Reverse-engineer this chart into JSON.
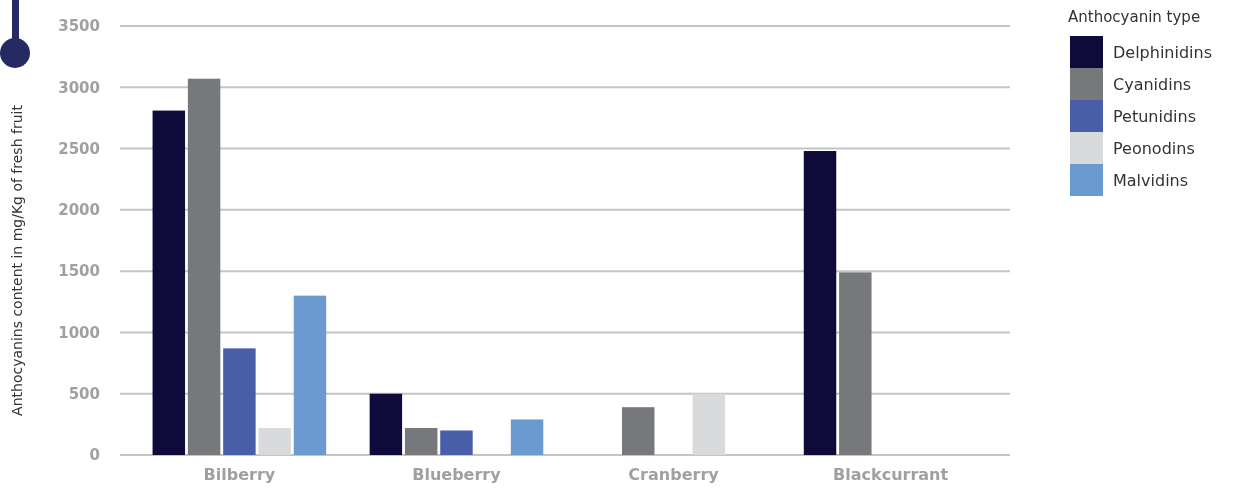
{
  "chart_data": {
    "type": "bar",
    "ylabel": "Anthocyanins content in mg/Kg of fresh fruit",
    "legend_title": "Anthocyanin type",
    "categories": [
      "Bilberry",
      "Blueberry",
      "Cranberry",
      "Blackcurrant"
    ],
    "series": [
      {
        "name": "Delphinidins",
        "color": "#0e0b3b",
        "values": [
          2810,
          500,
          null,
          2480
        ]
      },
      {
        "name": "Cyanidins",
        "color": "#77787c",
        "values": [
          3070,
          220,
          390,
          1490
        ]
      },
      {
        "name": "Petunidins",
        "color": "#485ea8",
        "values": [
          870,
          200,
          null,
          null
        ]
      },
      {
        "name": "Peonodins",
        "color": "#d9dadc",
        "values": [
          220,
          null,
          500,
          null
        ]
      },
      {
        "name": "Malvidins",
        "color": "#6b9ad0",
        "values": [
          1300,
          290,
          null,
          null
        ]
      }
    ],
    "ylim": [
      0,
      3500
    ],
    "yticks": [
      0,
      500,
      1000,
      1500,
      2000,
      2500,
      3000,
      3500
    ],
    "grid": "y",
    "legend": "top right"
  }
}
